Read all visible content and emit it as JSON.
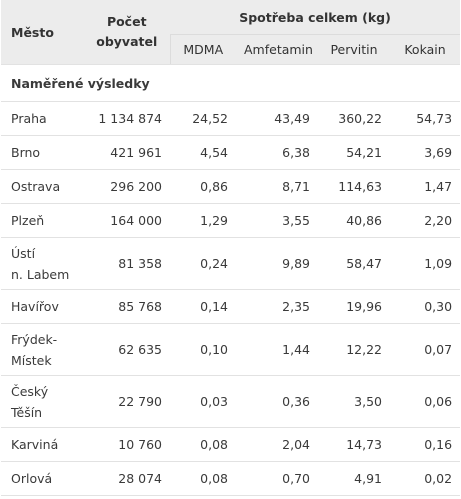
{
  "header": {
    "mesto": "Město",
    "pocet_line1": "Počet",
    "pocet_line2": "obyvatel",
    "spotreba": "Spotřeba celkem (kg)",
    "sub": [
      "MDMA",
      "Amfetamin",
      "Pervitin",
      "Kokain"
    ]
  },
  "section_title": "Naměřené výsledky",
  "rows": [
    {
      "city": [
        "Praha"
      ],
      "pop": "1 134 874",
      "mdma": "24,52",
      "amf": "43,49",
      "perv": "360,22",
      "kok": "54,73"
    },
    {
      "city": [
        "Brno"
      ],
      "pop": "421 961",
      "mdma": "4,54",
      "amf": "6,38",
      "perv": "54,21",
      "kok": "3,69"
    },
    {
      "city": [
        "Ostrava"
      ],
      "pop": "296 200",
      "mdma": "0,86",
      "amf": "8,71",
      "perv": "114,63",
      "kok": "1,47"
    },
    {
      "city": [
        "Plzeň"
      ],
      "pop": "164 000",
      "mdma": "1,29",
      "amf": "3,55",
      "perv": "40,86",
      "kok": "2,20"
    },
    {
      "city": [
        "Ústí",
        "n. Labem"
      ],
      "pop": "81 358",
      "mdma": "0,24",
      "amf": "9,89",
      "perv": "58,47",
      "kok": "1,09"
    },
    {
      "city": [
        "Havířov"
      ],
      "pop": "85 768",
      "mdma": "0,14",
      "amf": "2,35",
      "perv": "19,96",
      "kok": "0,30"
    },
    {
      "city": [
        "Frýdek-",
        "Místek"
      ],
      "pop": "62 635",
      "mdma": "0,10",
      "amf": "1,44",
      "perv": "12,22",
      "kok": "0,07"
    },
    {
      "city": [
        "Český",
        "Těšín"
      ],
      "pop": "22 790",
      "mdma": "0,03",
      "amf": "0,36",
      "perv": "3,50",
      "kok": "0,06"
    },
    {
      "city": [
        "Karviná"
      ],
      "pop": "10 760",
      "mdma": "0,08",
      "amf": "2,04",
      "perv": "14,73",
      "kok": "0,16"
    },
    {
      "city": [
        "Orlová"
      ],
      "pop": "28 074",
      "mdma": "0,08",
      "amf": "0,70",
      "perv": "4,91",
      "kok": "0,02"
    }
  ]
}
